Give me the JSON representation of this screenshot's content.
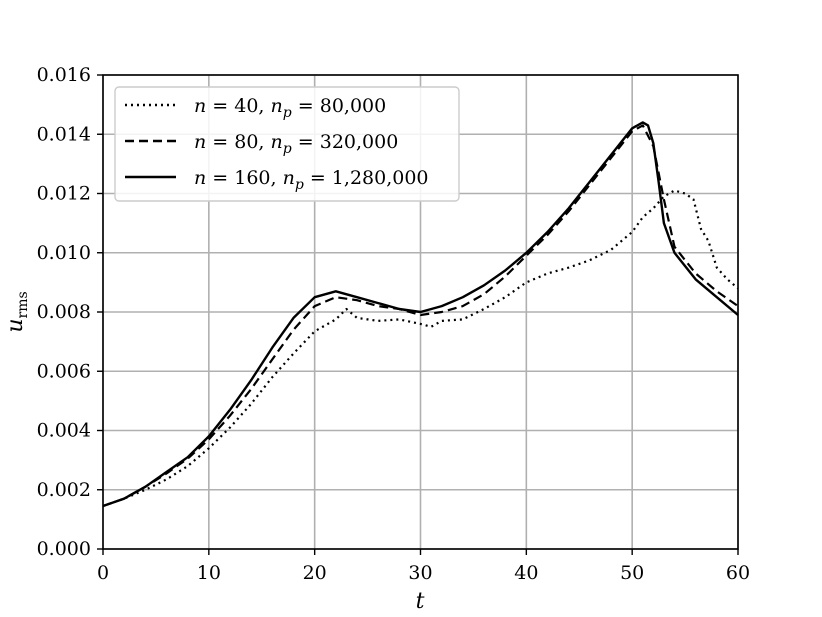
{
  "chart_data": {
    "type": "line",
    "title": "",
    "xlabel": "t",
    "ylabel": "u",
    "ylabel_subscript": "rms",
    "xlim": [
      0,
      60
    ],
    "ylim": [
      0,
      0.016
    ],
    "xticks": [
      0,
      10,
      20,
      30,
      40,
      50,
      60
    ],
    "xtick_labels": [
      "0",
      "10",
      "20",
      "30",
      "40",
      "50",
      "60"
    ],
    "yticks": [
      0,
      0.002,
      0.004,
      0.006,
      0.008,
      0.01,
      0.012,
      0.014,
      0.016
    ],
    "ytick_labels": [
      "0.000",
      "0.002",
      "0.004",
      "0.006",
      "0.008",
      "0.010",
      "0.012",
      "0.014",
      "0.016"
    ],
    "grid": true,
    "legend_position": "upper-left",
    "series": [
      {
        "name": "n = 40, n_p = 80,000",
        "label_parts": {
          "n": "40",
          "np": "80,000"
        },
        "style": "dotted",
        "color": "#000000",
        "points": [
          [
            0,
            0.00145
          ],
          [
            2,
            0.0017
          ],
          [
            4,
            0.002
          ],
          [
            6,
            0.00235
          ],
          [
            8,
            0.0028
          ],
          [
            10,
            0.0034
          ],
          [
            12,
            0.0041
          ],
          [
            14,
            0.0049
          ],
          [
            16,
            0.0058
          ],
          [
            18,
            0.0066
          ],
          [
            20,
            0.00735
          ],
          [
            22,
            0.00775
          ],
          [
            23,
            0.0081
          ],
          [
            24,
            0.0078
          ],
          [
            26,
            0.0077
          ],
          [
            28,
            0.00775
          ],
          [
            30,
            0.0076
          ],
          [
            31,
            0.0075
          ],
          [
            32,
            0.0077
          ],
          [
            34,
            0.00775
          ],
          [
            36,
            0.0081
          ],
          [
            38,
            0.0085
          ],
          [
            40,
            0.009
          ],
          [
            42,
            0.0093
          ],
          [
            44,
            0.0095
          ],
          [
            46,
            0.00975
          ],
          [
            48,
            0.0101
          ],
          [
            50,
            0.0107
          ],
          [
            51,
            0.0112
          ],
          [
            52,
            0.0115
          ],
          [
            53,
            0.0119
          ],
          [
            54,
            0.0121
          ],
          [
            55,
            0.012
          ],
          [
            55.8,
            0.0118
          ],
          [
            56.5,
            0.0108
          ],
          [
            57.2,
            0.0104
          ],
          [
            58,
            0.0095
          ],
          [
            59,
            0.0091
          ],
          [
            60,
            0.0088
          ]
        ]
      },
      {
        "name": "n = 80, n_p = 320,000",
        "label_parts": {
          "n": "80",
          "np": "320,000"
        },
        "style": "dashed",
        "color": "#000000",
        "points": [
          [
            0,
            0.00145
          ],
          [
            2,
            0.0017
          ],
          [
            4,
            0.0021
          ],
          [
            6,
            0.00255
          ],
          [
            8,
            0.00305
          ],
          [
            10,
            0.0037
          ],
          [
            12,
            0.0045
          ],
          [
            14,
            0.0054
          ],
          [
            16,
            0.0064
          ],
          [
            18,
            0.0074
          ],
          [
            20,
            0.0082
          ],
          [
            22,
            0.0085
          ],
          [
            24,
            0.0084
          ],
          [
            26,
            0.0082
          ],
          [
            28,
            0.0081
          ],
          [
            30,
            0.0079
          ],
          [
            32,
            0.008
          ],
          [
            34,
            0.0082
          ],
          [
            36,
            0.0086
          ],
          [
            38,
            0.0092
          ],
          [
            40,
            0.0099
          ],
          [
            42,
            0.0106
          ],
          [
            44,
            0.0114
          ],
          [
            46,
            0.0123
          ],
          [
            48,
            0.0132
          ],
          [
            50,
            0.0141
          ],
          [
            51,
            0.0143
          ],
          [
            52,
            0.0136
          ],
          [
            53,
            0.0118
          ],
          [
            54,
            0.0102
          ],
          [
            56,
            0.0093
          ],
          [
            58,
            0.0087
          ],
          [
            60,
            0.0082
          ]
        ]
      },
      {
        "name": "n = 160, n_p = 1,280,000",
        "label_parts": {
          "n": "160",
          "np": "1,280,000"
        },
        "style": "solid",
        "color": "#000000",
        "points": [
          [
            0,
            0.00145
          ],
          [
            2,
            0.0017
          ],
          [
            4,
            0.0021
          ],
          [
            6,
            0.0026
          ],
          [
            8,
            0.0031
          ],
          [
            10,
            0.0038
          ],
          [
            12,
            0.0047
          ],
          [
            14,
            0.0057
          ],
          [
            16,
            0.0068
          ],
          [
            18,
            0.0078
          ],
          [
            20,
            0.0085
          ],
          [
            22,
            0.0087
          ],
          [
            24,
            0.0085
          ],
          [
            26,
            0.0083
          ],
          [
            28,
            0.0081
          ],
          [
            30,
            0.008
          ],
          [
            32,
            0.0082
          ],
          [
            34,
            0.0085
          ],
          [
            36,
            0.0089
          ],
          [
            38,
            0.0094
          ],
          [
            40,
            0.01
          ],
          [
            42,
            0.0107
          ],
          [
            44,
            0.0115
          ],
          [
            46,
            0.0124
          ],
          [
            48,
            0.0133
          ],
          [
            50,
            0.0142
          ],
          [
            51,
            0.0144
          ],
          [
            51.5,
            0.0143
          ],
          [
            52,
            0.0137
          ],
          [
            52.5,
            0.0124
          ],
          [
            53,
            0.011
          ],
          [
            54,
            0.01
          ],
          [
            56,
            0.0091
          ],
          [
            58,
            0.0085
          ],
          [
            60,
            0.0079
          ]
        ]
      }
    ]
  }
}
